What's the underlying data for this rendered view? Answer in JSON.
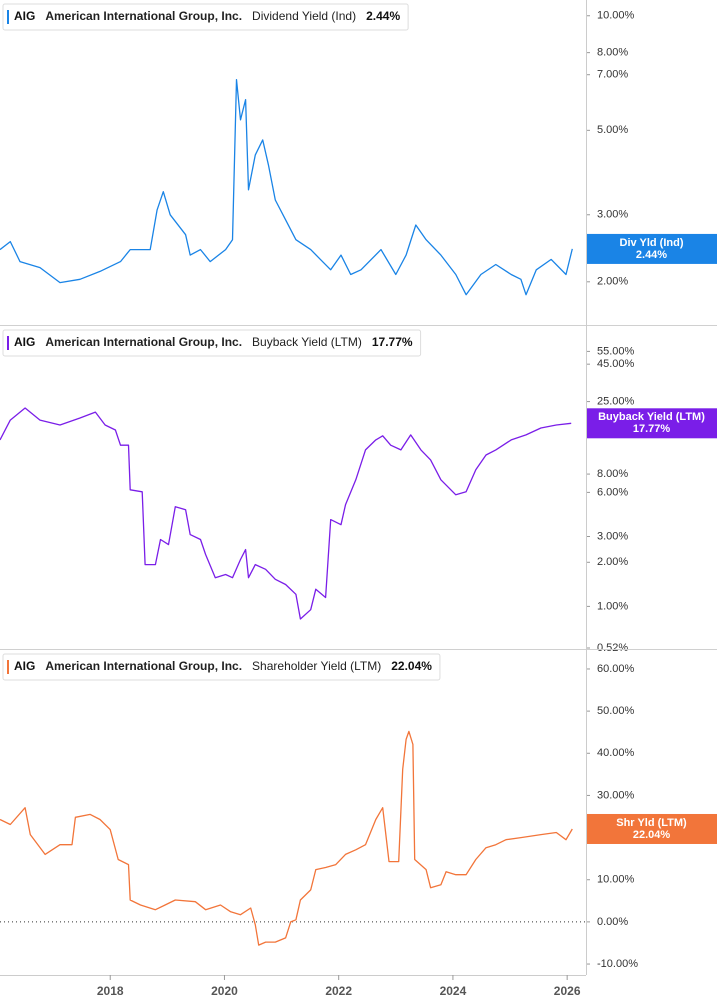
{
  "chart_data": [
    {
      "type": "line",
      "ticker": "AIG",
      "company": "American International Group, Inc.",
      "metric": "Dividend Yield (Ind)",
      "current_value_label": "2.44%",
      "badge_label": "Div Yld (Ind)",
      "color": "#1a84e6",
      "log_scale": true,
      "xlim": [
        2016.07,
        2026.33
      ],
      "ylim": [
        1.54,
        11.0
      ],
      "yticks": [
        {
          "value": 10,
          "label": "10.00%"
        },
        {
          "value": 8,
          "label": "8.00%"
        },
        {
          "value": 7,
          "label": "7.00%"
        },
        {
          "value": 5,
          "label": "5.00%"
        },
        {
          "value": 3,
          "label": "3.00%"
        },
        {
          "value": 2,
          "label": "2.00%"
        }
      ],
      "x": [
        2016.07,
        2016.25,
        2016.42,
        2016.77,
        2017.12,
        2017.47,
        2017.82,
        2018.18,
        2018.35,
        2018.7,
        2018.82,
        2018.93,
        2019.05,
        2019.32,
        2019.4,
        2019.58,
        2019.75,
        2020.02,
        2020.14,
        2020.21,
        2020.28,
        2020.37,
        2020.42,
        2020.54,
        2020.67,
        2020.77,
        2020.89,
        2021.07,
        2021.25,
        2021.51,
        2021.68,
        2021.86,
        2022.04,
        2022.21,
        2022.39,
        2022.74,
        2023.0,
        2023.18,
        2023.35,
        2023.53,
        2023.79,
        2024.05,
        2024.23,
        2024.49,
        2024.75,
        2025.02,
        2025.19,
        2025.28,
        2025.46,
        2025.72,
        2025.98,
        2026.09
      ],
      "values": [
        2.43,
        2.55,
        2.26,
        2.18,
        1.99,
        2.03,
        2.13,
        2.26,
        2.43,
        2.43,
        3.09,
        3.45,
        3.0,
        2.66,
        2.35,
        2.43,
        2.26,
        2.43,
        2.58,
        6.79,
        5.33,
        6.02,
        3.49,
        4.31,
        4.72,
        4.06,
        3.28,
        2.91,
        2.58,
        2.43,
        2.29,
        2.15,
        2.35,
        2.09,
        2.15,
        2.43,
        2.09,
        2.35,
        2.82,
        2.58,
        2.35,
        2.09,
        1.85,
        2.09,
        2.22,
        2.09,
        2.03,
        1.85,
        2.15,
        2.29,
        2.09,
        2.44
      ]
    },
    {
      "type": "line",
      "ticker": "AIG",
      "company": "American International Group, Inc.",
      "metric": "Buyback Yield (LTM)",
      "current_value_label": "17.77%",
      "badge_label": "Buyback Yield (LTM)",
      "color": "#7a1ee8",
      "log_scale": true,
      "xlim": [
        2016.07,
        2026.33
      ],
      "ylim": [
        0.52,
        82
      ],
      "yticks": [
        {
          "value": 55,
          "label": "55.00%"
        },
        {
          "value": 45,
          "label": "45.00%"
        },
        {
          "value": 25,
          "label": "25.00%"
        },
        {
          "value": 8,
          "label": "8.00%"
        },
        {
          "value": 6,
          "label": "6.00%"
        },
        {
          "value": 3,
          "label": "3.00%"
        },
        {
          "value": 2,
          "label": "2.00%"
        },
        {
          "value": 1,
          "label": "1.00%"
        },
        {
          "value": 0.52,
          "label": "0.52%"
        }
      ],
      "x": [
        2016.07,
        2016.25,
        2016.51,
        2016.77,
        2017.12,
        2017.47,
        2017.74,
        2017.91,
        2018.09,
        2018.18,
        2018.32,
        2018.35,
        2018.56,
        2018.61,
        2018.79,
        2018.88,
        2019.02,
        2019.14,
        2019.32,
        2019.4,
        2019.58,
        2019.67,
        2019.84,
        2020.02,
        2020.14,
        2020.28,
        2020.37,
        2020.42,
        2020.54,
        2020.72,
        2020.89,
        2021.07,
        2021.25,
        2021.33,
        2021.51,
        2021.6,
        2021.77,
        2021.86,
        2022.04,
        2022.12,
        2022.3,
        2022.47,
        2022.65,
        2022.77,
        2022.91,
        2023.09,
        2023.26,
        2023.44,
        2023.61,
        2023.79,
        2024.05,
        2024.23,
        2024.4,
        2024.58,
        2024.75,
        2025.02,
        2025.28,
        2025.54,
        2025.81,
        2026.07
      ],
      "values": [
        13.7,
        18.7,
        22.6,
        18.7,
        17.3,
        19.3,
        21.2,
        17.3,
        16.0,
        12.6,
        12.6,
        6.25,
        6.06,
        1.93,
        1.93,
        2.86,
        2.64,
        4.79,
        4.57,
        3.09,
        2.86,
        2.26,
        1.57,
        1.65,
        1.57,
        2.09,
        2.44,
        1.57,
        1.93,
        1.79,
        1.53,
        1.41,
        1.21,
        0.82,
        0.95,
        1.31,
        1.15,
        3.91,
        3.61,
        4.94,
        7.31,
        11.7,
        13.7,
        14.6,
        12.6,
        11.7,
        14.8,
        11.7,
        10.0,
        7.31,
        5.78,
        6.06,
        8.55,
        10.8,
        11.7,
        13.7,
        14.8,
        16.5,
        17.3,
        17.77
      ]
    },
    {
      "type": "line",
      "ticker": "AIG",
      "company": "American International Group, Inc.",
      "metric": "Shareholder Yield (LTM)",
      "current_value_label": "22.04%",
      "badge_label": "Shr Yld (LTM)",
      "color": "#f2753a",
      "log_scale": false,
      "zero_line": true,
      "xlim": [
        2016.07,
        2026.33
      ],
      "ylim": [
        -12.6,
        64.5
      ],
      "yticks": [
        {
          "value": 60,
          "label": "60.00%"
        },
        {
          "value": 50,
          "label": "50.00%"
        },
        {
          "value": 40,
          "label": "40.00%"
        },
        {
          "value": 30,
          "label": "30.00%"
        },
        {
          "value": 20,
          "label": "20.00%"
        },
        {
          "value": 10,
          "label": "10.00%"
        },
        {
          "value": 0,
          "label": "0.00%"
        },
        {
          "value": -10,
          "label": "-10.00%"
        }
      ],
      "xticks": [
        2018,
        2020,
        2022,
        2024,
        2026
      ],
      "x": [
        2016.07,
        2016.25,
        2016.51,
        2016.6,
        2016.86,
        2017.12,
        2017.33,
        2017.39,
        2017.65,
        2017.82,
        2018.0,
        2018.14,
        2018.32,
        2018.35,
        2018.53,
        2018.79,
        2018.96,
        2019.14,
        2019.49,
        2019.67,
        2019.93,
        2020.11,
        2020.28,
        2020.46,
        2020.54,
        2020.6,
        2020.72,
        2020.89,
        2021.07,
        2021.16,
        2021.25,
        2021.33,
        2021.51,
        2021.6,
        2021.77,
        2021.95,
        2022.12,
        2022.3,
        2022.47,
        2022.65,
        2022.77,
        2022.88,
        2023.05,
        2023.12,
        2023.18,
        2023.23,
        2023.3,
        2023.33,
        2023.53,
        2023.61,
        2023.79,
        2023.88,
        2024.05,
        2024.23,
        2024.4,
        2024.58,
        2024.75,
        2024.93,
        2025.19,
        2025.54,
        2025.81,
        2025.98,
        2026.09
      ],
      "values": [
        24.3,
        23.1,
        27.1,
        20.7,
        16.0,
        18.3,
        18.3,
        24.8,
        25.5,
        24.3,
        21.9,
        14.8,
        13.6,
        5.2,
        4.0,
        2.9,
        4.0,
        5.2,
        4.8,
        2.9,
        4.0,
        2.4,
        1.7,
        3.3,
        -0.7,
        -5.5,
        -4.8,
        -4.8,
        -3.8,
        0,
        0.5,
        5.2,
        7.6,
        12.4,
        12.9,
        13.6,
        16.0,
        17.1,
        18.3,
        24.3,
        27.1,
        14.3,
        14.3,
        36.2,
        43.3,
        45.2,
        42.1,
        14.8,
        12.4,
        8.1,
        8.8,
        11.9,
        11.2,
        11.2,
        14.8,
        17.6,
        18.3,
        19.5,
        20.0,
        20.7,
        21.2,
        19.5,
        22.04
      ]
    }
  ]
}
